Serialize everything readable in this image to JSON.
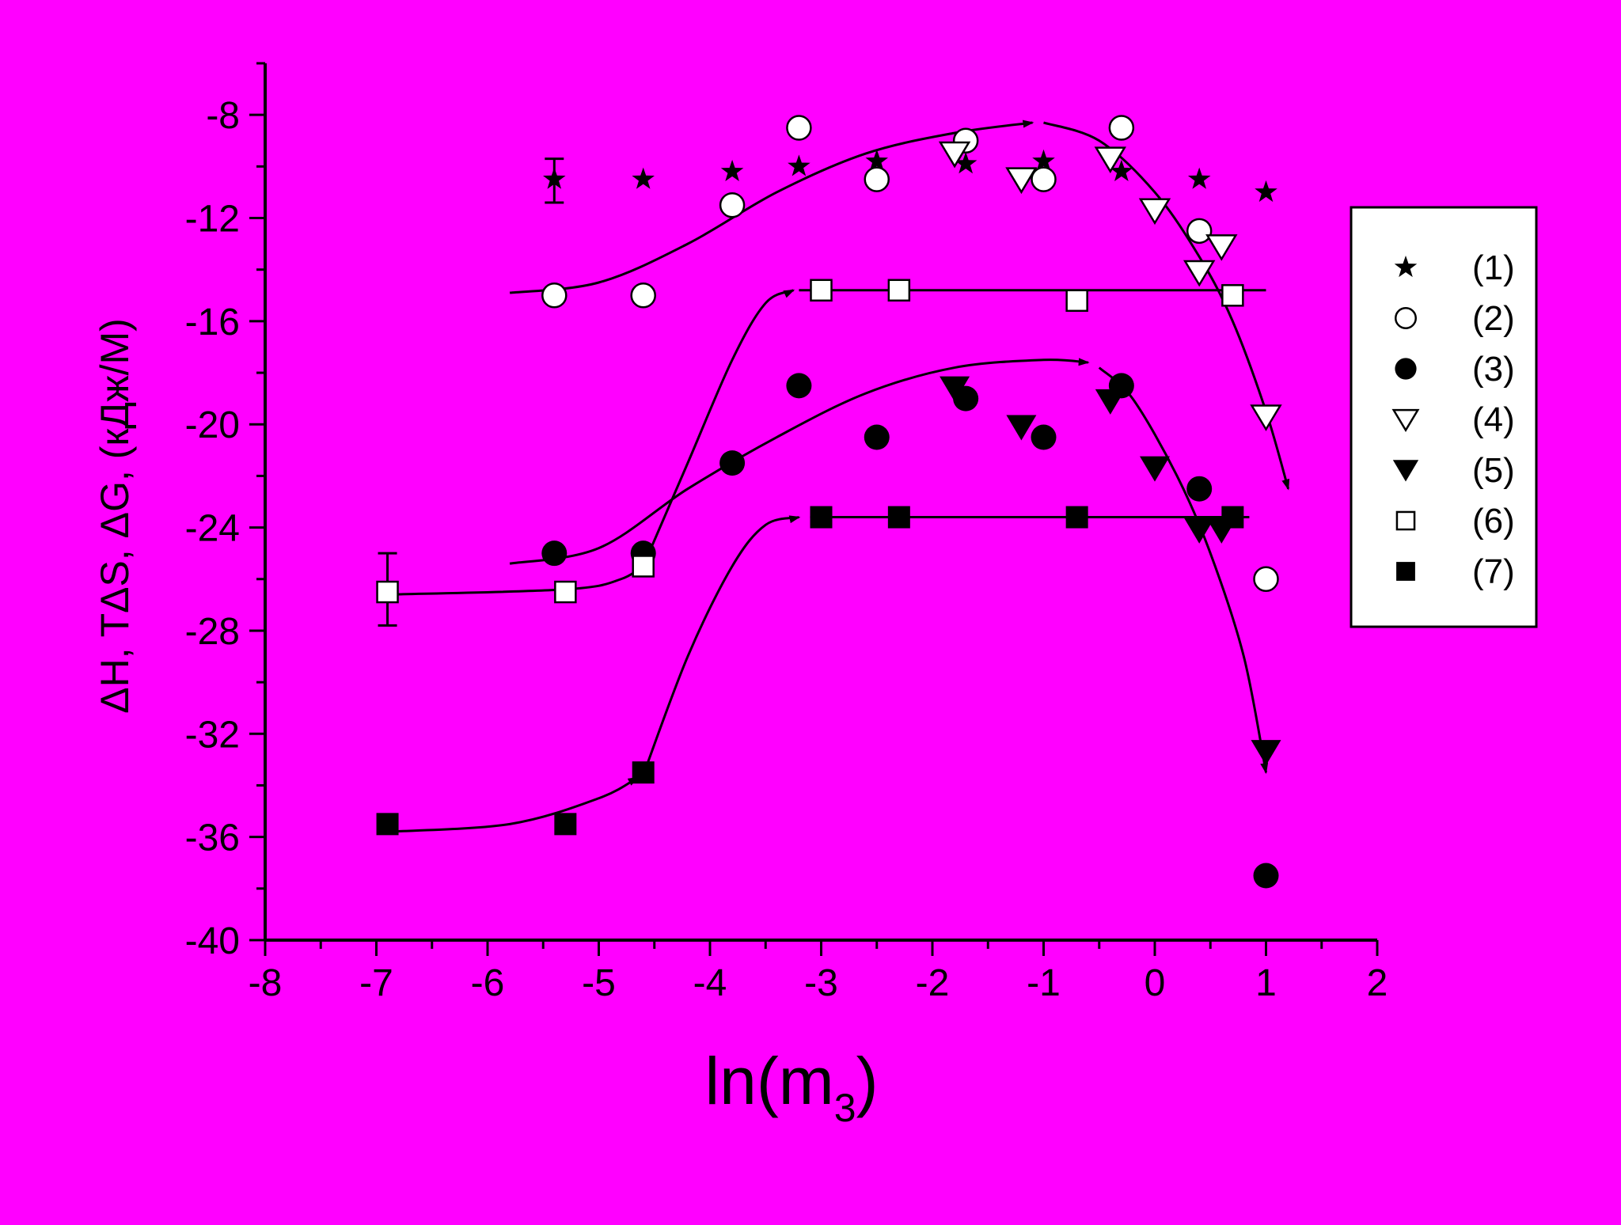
{
  "page": {
    "background": "#ff00ff"
  },
  "chart_data": {
    "type": "scatter",
    "title": "",
    "xlabel": "ln(m",
    "xlabel_sub": "3",
    "xlabel_close": ")",
    "ylabel": "ΔH, TΔS, ΔG, (кДж/М)",
    "xlim": [
      -8,
      2
    ],
    "ylim": [
      -40,
      -6
    ],
    "xticks": [
      -8,
      -7,
      -6,
      -5,
      -4,
      -3,
      -2,
      -1,
      0,
      1,
      2
    ],
    "xtick_labels": [
      "-8",
      "-7",
      "-6",
      "-5",
      "-4",
      "-3",
      "-2",
      "-1",
      "0",
      "1",
      "2"
    ],
    "yticks": [
      -40,
      -36,
      -32,
      -28,
      -24,
      -20,
      -16,
      -12,
      -8
    ],
    "ytick_labels": [
      "-40",
      "-36",
      "-32",
      "-28",
      "-24",
      "-20",
      "-16",
      "-12",
      "-8"
    ],
    "grid": false,
    "legend_position": "right",
    "series": [
      {
        "name": "(1)",
        "marker": "star",
        "fill": "#000000",
        "points": [
          [
            -5.4,
            -10.5
          ],
          [
            -4.6,
            -10.5
          ],
          [
            -3.8,
            -10.2
          ],
          [
            -3.2,
            -10.0
          ],
          [
            -2.5,
            -9.8
          ],
          [
            -1.7,
            -9.9
          ],
          [
            -1.0,
            -9.8
          ],
          [
            -0.3,
            -10.2
          ],
          [
            0.4,
            -10.5
          ],
          [
            1.0,
            -11.0
          ]
        ]
      },
      {
        "name": "(2)",
        "marker": "circle-open",
        "fill": "#ffffff",
        "points": [
          [
            -5.4,
            -15.0
          ],
          [
            -4.6,
            -15.0
          ],
          [
            -3.8,
            -11.5
          ],
          [
            -3.2,
            -8.5
          ],
          [
            -2.5,
            -10.5
          ],
          [
            -1.7,
            -9.0
          ],
          [
            -1.0,
            -10.5
          ],
          [
            -0.3,
            -8.5
          ],
          [
            0.4,
            -12.5
          ],
          [
            1.0,
            -26.0
          ]
        ]
      },
      {
        "name": "(3)",
        "marker": "circle-filled",
        "fill": "#000000",
        "points": [
          [
            -5.4,
            -25.0
          ],
          [
            -4.6,
            -25.0
          ],
          [
            -3.8,
            -21.5
          ],
          [
            -3.2,
            -18.5
          ],
          [
            -2.5,
            -20.5
          ],
          [
            -1.7,
            -19.0
          ],
          [
            -1.0,
            -20.5
          ],
          [
            -0.3,
            -18.5
          ],
          [
            0.4,
            -22.5
          ],
          [
            1.0,
            -37.5
          ]
        ]
      },
      {
        "name": "(4)",
        "marker": "triangle-down-open",
        "fill": "#ffffff",
        "points": [
          [
            -1.8,
            -9.5
          ],
          [
            -1.2,
            -10.5
          ],
          [
            -0.4,
            -9.7
          ],
          [
            0.0,
            -11.7
          ],
          [
            0.4,
            -14.1
          ],
          [
            0.6,
            -13.1
          ],
          [
            1.0,
            -19.7
          ]
        ]
      },
      {
        "name": "(5)",
        "marker": "triangle-down-filled",
        "fill": "#000000",
        "points": [
          [
            -1.8,
            -18.6
          ],
          [
            -1.2,
            -20.1
          ],
          [
            -0.4,
            -19.1
          ],
          [
            0.0,
            -21.7
          ],
          [
            0.4,
            -24.1
          ],
          [
            0.6,
            -24.1
          ],
          [
            1.0,
            -32.7
          ]
        ]
      },
      {
        "name": "(6)",
        "marker": "square-open",
        "fill": "#ffffff",
        "points": [
          [
            -6.9,
            -26.5
          ],
          [
            -5.3,
            -26.5
          ],
          [
            -4.6,
            -25.5
          ],
          [
            -3.0,
            -14.8
          ],
          [
            -2.3,
            -14.8
          ],
          [
            -0.7,
            -15.2
          ],
          [
            0.7,
            -15.0
          ]
        ]
      },
      {
        "name": "(7)",
        "marker": "square-filled",
        "fill": "#000000",
        "points": [
          [
            -6.9,
            -35.5
          ],
          [
            -5.3,
            -35.5
          ],
          [
            -4.6,
            -33.5
          ],
          [
            -3.0,
            -23.6
          ],
          [
            -2.3,
            -23.6
          ],
          [
            -0.7,
            -23.6
          ],
          [
            0.7,
            -23.6
          ]
        ]
      }
    ],
    "error_bars": [
      {
        "x": -5.4,
        "y": -10.5,
        "low": -11.4,
        "high": -9.7
      },
      {
        "x": -6.9,
        "y": -26.5,
        "low": -27.8,
        "high": -25.0
      }
    ],
    "fit_curves": [
      {
        "points": [
          [
            -5.8,
            -14.9
          ],
          [
            -5.0,
            -14.5
          ],
          [
            -4.2,
            -13.0
          ],
          [
            -3.4,
            -11.0
          ],
          [
            -2.6,
            -9.5
          ],
          [
            -1.8,
            -8.7
          ],
          [
            -1.1,
            -8.3
          ]
        ],
        "arrow": true
      },
      {
        "points": [
          [
            -1.0,
            -8.3
          ],
          [
            -0.5,
            -9.0
          ],
          [
            0.0,
            -11.0
          ],
          [
            0.4,
            -13.5
          ],
          [
            0.7,
            -16.0
          ],
          [
            1.0,
            -19.5
          ],
          [
            1.2,
            -22.5
          ]
        ],
        "arrow": true
      },
      {
        "points": [
          [
            -5.8,
            -25.4
          ],
          [
            -5.0,
            -24.8
          ],
          [
            -4.2,
            -22.5
          ],
          [
            -3.4,
            -20.5
          ],
          [
            -2.6,
            -18.8
          ],
          [
            -1.8,
            -17.8
          ],
          [
            -1.0,
            -17.5
          ],
          [
            -0.6,
            -17.6
          ]
        ],
        "arrow": true
      },
      {
        "points": [
          [
            -0.5,
            -17.8
          ],
          [
            -0.2,
            -19.0
          ],
          [
            0.2,
            -22.0
          ],
          [
            0.5,
            -25.0
          ],
          [
            0.8,
            -29.0
          ],
          [
            1.0,
            -33.5
          ]
        ],
        "arrow": true
      },
      {
        "points": [
          [
            -6.9,
            -26.6
          ],
          [
            -5.3,
            -26.4
          ],
          [
            -4.8,
            -26.0
          ],
          [
            -4.55,
            -25.3
          ]
        ],
        "arrow": true
      },
      {
        "points": [
          [
            -4.6,
            -25.5
          ],
          [
            -4.2,
            -21.5
          ],
          [
            -3.8,
            -17.5
          ],
          [
            -3.5,
            -15.3
          ],
          [
            -3.25,
            -14.8
          ]
        ],
        "arrow": true
      },
      {
        "points": [
          [
            -3.2,
            -14.8
          ],
          [
            1.0,
            -14.8
          ]
        ],
        "arrow": false
      },
      {
        "points": [
          [
            -6.9,
            -35.8
          ],
          [
            -5.8,
            -35.5
          ],
          [
            -5.0,
            -34.5
          ],
          [
            -4.65,
            -33.7
          ]
        ],
        "arrow": true
      },
      {
        "points": [
          [
            -4.6,
            -33.6
          ],
          [
            -4.2,
            -29.0
          ],
          [
            -3.8,
            -25.5
          ],
          [
            -3.5,
            -23.9
          ],
          [
            -3.2,
            -23.6
          ]
        ],
        "arrow": true
      },
      {
        "points": [
          [
            -3.1,
            -23.6
          ],
          [
            0.85,
            -23.6
          ]
        ],
        "arrow": false
      }
    ]
  }
}
